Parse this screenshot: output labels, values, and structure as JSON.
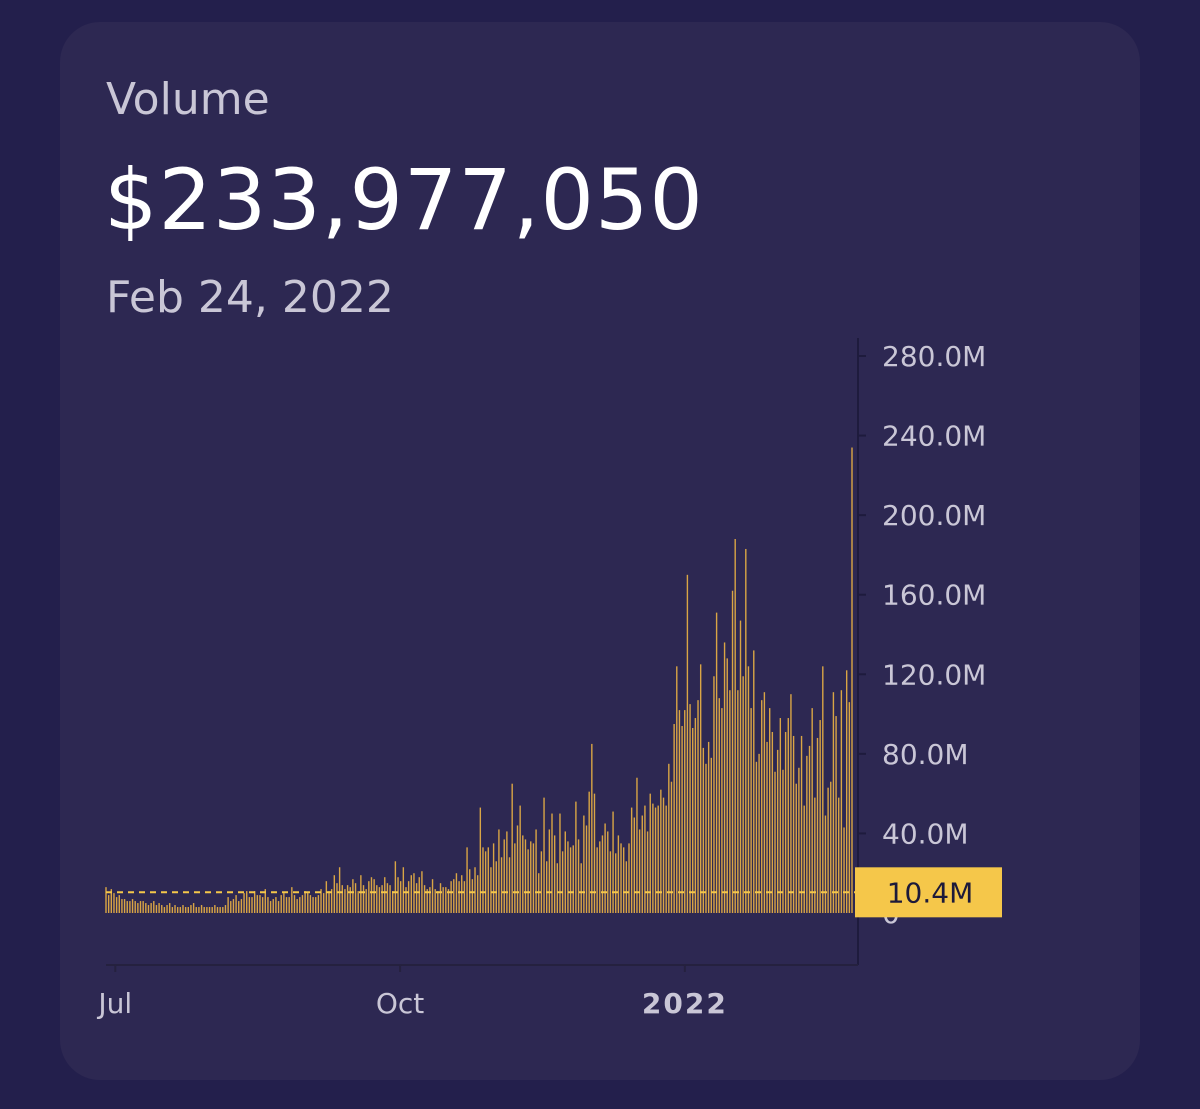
{
  "card": {
    "title": "Volume",
    "value": "$233,977,050",
    "date": "Feb 24, 2022"
  },
  "colors": {
    "background": "#231f4c",
    "card": "#2d2852",
    "bar": "#d9a545",
    "badge": "#f5c74a",
    "text": "#c9c6d6"
  },
  "chart_data": {
    "type": "bar",
    "title": "",
    "xlabel": "",
    "ylabel": "",
    "ylim": [
      0,
      280
    ],
    "y_ticks": [
      {
        "value": 280,
        "label": "280.0M"
      },
      {
        "value": 240,
        "label": "240.0M"
      },
      {
        "value": 200,
        "label": "200.0M"
      },
      {
        "value": 160,
        "label": "160.0M"
      },
      {
        "value": 120,
        "label": "120.0M"
      },
      {
        "value": 80,
        "label": "80.0M"
      },
      {
        "value": 40,
        "label": "40.0M"
      },
      {
        "value": 0,
        "label": "0"
      }
    ],
    "x_ticks": [
      {
        "date": "2021-07-01",
        "label": "Jul",
        "bold": false
      },
      {
        "date": "2021-10-01",
        "label": "Oct",
        "bold": false
      },
      {
        "date": "2022-01-01",
        "label": "2022",
        "bold": true
      }
    ],
    "x_start": "2021-06-28",
    "x_end": "2022-02-24",
    "reference_line": {
      "value": 10.4,
      "label": "10.4M"
    },
    "units": "M",
    "values": [
      13,
      9,
      12,
      10,
      8,
      9,
      7,
      7,
      6,
      6,
      7,
      6,
      5,
      6,
      6,
      5,
      4,
      5,
      6,
      4,
      5,
      4,
      3,
      4,
      5,
      3,
      4,
      3,
      3,
      4,
      3,
      3,
      4,
      5,
      3,
      3,
      4,
      3,
      3,
      3,
      3,
      4,
      3,
      3,
      3,
      4,
      8,
      6,
      7,
      9,
      6,
      7,
      10,
      11,
      8,
      8,
      11,
      9,
      9,
      8,
      12,
      8,
      6,
      7,
      8,
      6,
      9,
      10,
      8,
      8,
      13,
      9,
      7,
      8,
      9,
      11,
      10,
      9,
      8,
      8,
      9,
      12,
      10,
      16,
      11,
      12,
      19,
      15,
      23,
      14,
      12,
      14,
      13,
      17,
      15,
      11,
      19,
      14,
      12,
      16,
      18,
      17,
      14,
      13,
      14,
      18,
      15,
      14,
      11,
      26,
      18,
      16,
      23,
      13,
      16,
      19,
      20,
      15,
      18,
      21,
      14,
      12,
      13,
      17,
      12,
      11,
      15,
      13,
      13,
      12,
      16,
      17,
      20,
      16,
      19,
      16,
      33,
      22,
      17,
      23,
      19,
      53,
      33,
      31,
      33,
      23,
      35,
      26,
      42,
      28,
      37,
      41,
      28,
      65,
      35,
      44,
      54,
      39,
      37,
      32,
      36,
      35,
      42,
      20,
      31,
      58,
      26,
      42,
      50,
      39,
      25,
      50,
      31,
      41,
      36,
      33,
      34,
      56,
      37,
      25,
      49,
      44,
      61,
      85,
      60,
      33,
      36,
      39,
      45,
      41,
      31,
      51,
      30,
      39,
      35,
      33,
      26,
      35,
      53,
      48,
      68,
      42,
      49,
      54,
      41,
      60,
      55,
      53,
      54,
      62,
      58,
      54,
      75,
      66,
      95,
      124,
      102,
      94,
      102,
      170,
      105,
      93,
      98,
      107,
      125,
      83,
      75,
      86,
      78,
      119,
      151,
      108,
      103,
      136,
      128,
      112,
      162,
      188,
      112,
      147,
      119,
      183,
      124,
      103,
      132,
      76,
      80,
      107,
      111,
      86,
      103,
      91,
      71,
      82,
      98,
      72,
      91,
      98,
      110,
      89,
      65,
      73,
      89,
      54,
      79,
      84,
      103,
      58,
      88,
      97,
      124,
      49,
      63,
      66,
      111,
      99,
      58,
      112,
      43,
      122,
      106,
      234
    ]
  }
}
